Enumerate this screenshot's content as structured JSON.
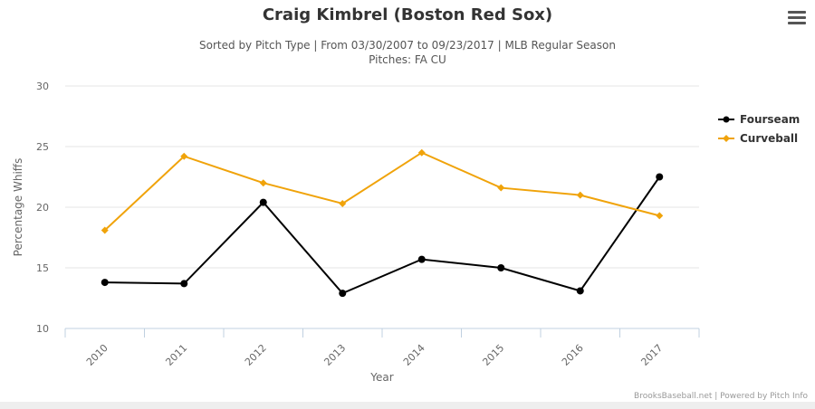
{
  "header": {
    "title": "Craig Kimbrel (Boston Red Sox)",
    "subtitle": "Sorted by Pitch Type | From 03/30/2007 to 09/23/2017 | MLB Regular Season",
    "subtitle2": "Pitches: FA CU"
  },
  "credits": "BrooksBaseball.net | Powered by Pitch Info",
  "chart_data": {
    "type": "line",
    "title": "Craig Kimbrel (Boston Red Sox)",
    "xlabel": "Year",
    "ylabel": "Percentage Whiffs",
    "categories": [
      "2010",
      "2011",
      "2012",
      "2013",
      "2014",
      "2015",
      "2016",
      "2017"
    ],
    "ylim": [
      10,
      30
    ],
    "yticks": [
      10,
      15,
      20,
      25,
      30
    ],
    "grid": true,
    "legend": "right",
    "series": [
      {
        "name": "Fourseam",
        "color": "#000000",
        "values": [
          13.8,
          13.7,
          20.4,
          12.9,
          15.7,
          15.0,
          13.1,
          22.5
        ]
      },
      {
        "name": "Curveball",
        "color": "#f0a30a",
        "values": [
          18.1,
          24.2,
          22.0,
          20.3,
          24.5,
          21.6,
          21.0,
          19.3
        ]
      }
    ]
  }
}
